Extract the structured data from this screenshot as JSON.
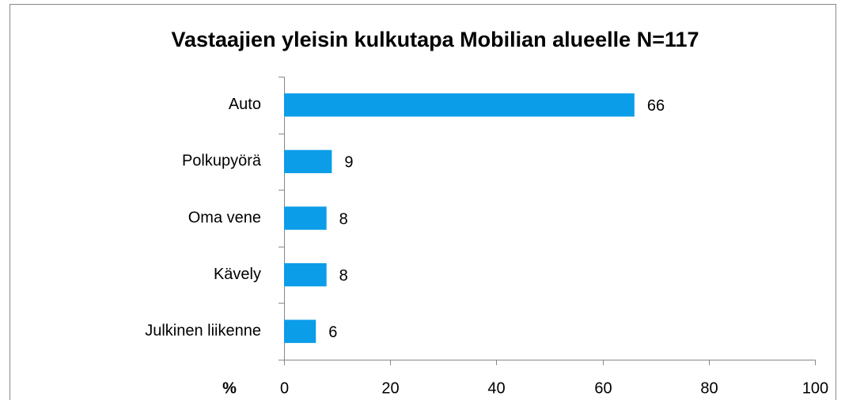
{
  "chart_data": {
    "type": "bar",
    "orientation": "horizontal",
    "title": "Vastaajien yleisin kulkutapa Mobilian alueelle N=117",
    "xlabel": "%",
    "categories": [
      "Auto",
      "Polkupyörä",
      "Oma vene",
      "Kävely",
      "Julkinen liikenne"
    ],
    "values": [
      66,
      9,
      8,
      8,
      6
    ],
    "color": "#0c9de8",
    "xlim": [
      0,
      100
    ],
    "xticks": [
      0,
      20,
      40,
      60,
      80,
      100
    ],
    "grid": false
  }
}
